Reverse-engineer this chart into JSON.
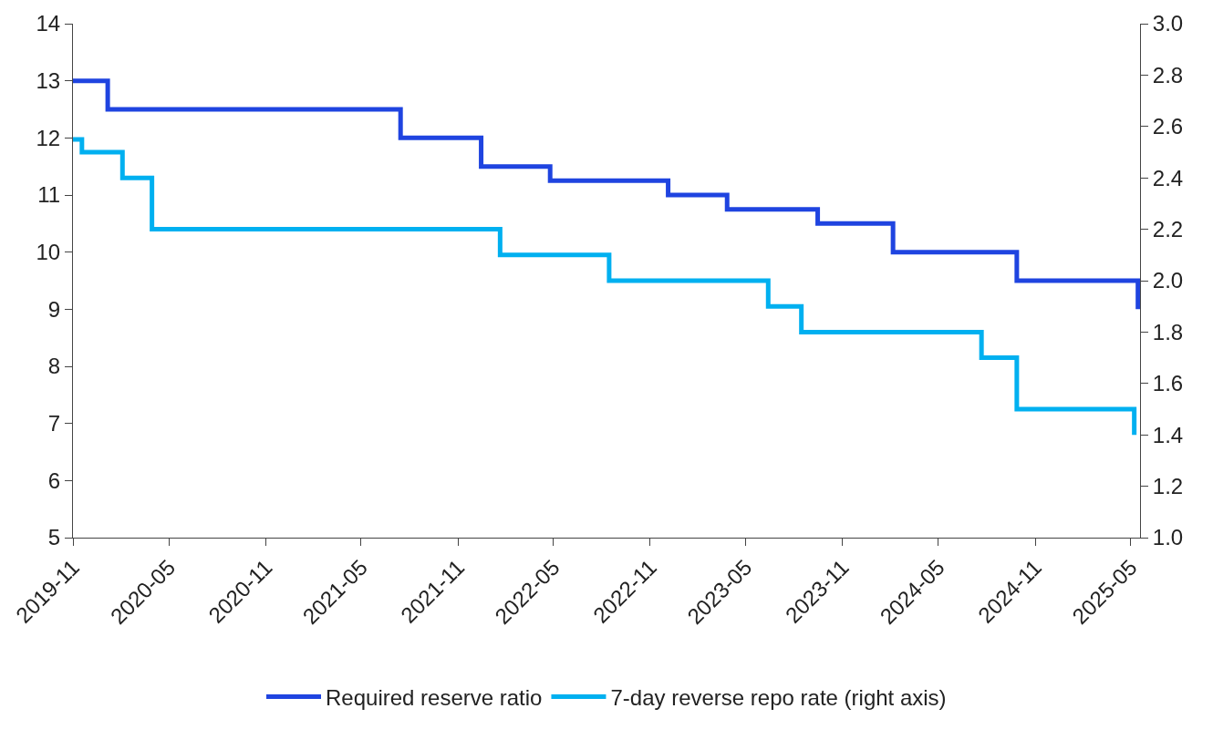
{
  "chart_data": {
    "type": "step",
    "series": [
      {
        "name": "Required reserve ratio",
        "color": "#1f44e0",
        "x": [
          "2019-11-01",
          "2020-01-06",
          "2021-07-15",
          "2021-12-15",
          "2022-04-25",
          "2022-12-05",
          "2023-03-27",
          "2023-09-15",
          "2024-02-05",
          "2024-09-27",
          "2025-05-15"
        ],
        "values": [
          13,
          12.5,
          12,
          11.5,
          11.25,
          11,
          10.75,
          10.5,
          10,
          9.5,
          9
        ]
      },
      {
        "name": "7-day reverse repo rate (right axis)",
        "color": "#00b0f0",
        "axis": "y2",
        "x": [
          "2019-11-01",
          "2019-11-18",
          "2020-02-03",
          "2020-03-30",
          "2022-01-20",
          "2022-08-15",
          "2023-06-13",
          "2023-08-15",
          "2024-07-22",
          "2024-09-27",
          "2025-05-08"
        ],
        "values": [
          2.55,
          2.5,
          2.4,
          2.2,
          2.1,
          2.0,
          1.9,
          1.8,
          1.7,
          1.5,
          1.4
        ]
      }
    ],
    "xlim": [
      "2019-11-01",
      "2025-05-19"
    ],
    "xticks": [
      {
        "value": "2019-11-01",
        "label": "2019-11"
      },
      {
        "value": "2020-05-01",
        "label": "2020-05"
      },
      {
        "value": "2020-11-01",
        "label": "2020-11"
      },
      {
        "value": "2021-05-01",
        "label": "2021-05"
      },
      {
        "value": "2021-11-01",
        "label": "2021-11"
      },
      {
        "value": "2022-05-01",
        "label": "2022-05"
      },
      {
        "value": "2022-11-01",
        "label": "2022-11"
      },
      {
        "value": "2023-05-01",
        "label": "2023-05"
      },
      {
        "value": "2023-11-01",
        "label": "2023-11"
      },
      {
        "value": "2024-05-01",
        "label": "2024-05"
      },
      {
        "value": "2024-11-01",
        "label": "2024-11"
      },
      {
        "value": "2025-05-01",
        "label": "2025-05"
      }
    ],
    "ylim": [
      5,
      14
    ],
    "yticks": [
      5,
      6,
      7,
      8,
      9,
      10,
      11,
      12,
      13,
      14
    ],
    "y2lim": [
      1.0,
      3.0
    ],
    "y2ticks": [
      {
        "value": 1.0,
        "label": "1.0"
      },
      {
        "value": 1.2,
        "label": "1.2"
      },
      {
        "value": 1.4,
        "label": "1.4"
      },
      {
        "value": 1.6,
        "label": "1.6"
      },
      {
        "value": 1.8,
        "label": "1.8"
      },
      {
        "value": 2.0,
        "label": "2.0"
      },
      {
        "value": 2.2,
        "label": "2.2"
      },
      {
        "value": 2.4,
        "label": "2.4"
      },
      {
        "value": 2.6,
        "label": "2.6"
      },
      {
        "value": 2.8,
        "label": "2.8"
      },
      {
        "value": 3.0,
        "label": "3.0"
      }
    ],
    "legend": "bottom",
    "line_style": "solid",
    "marker": "none"
  }
}
